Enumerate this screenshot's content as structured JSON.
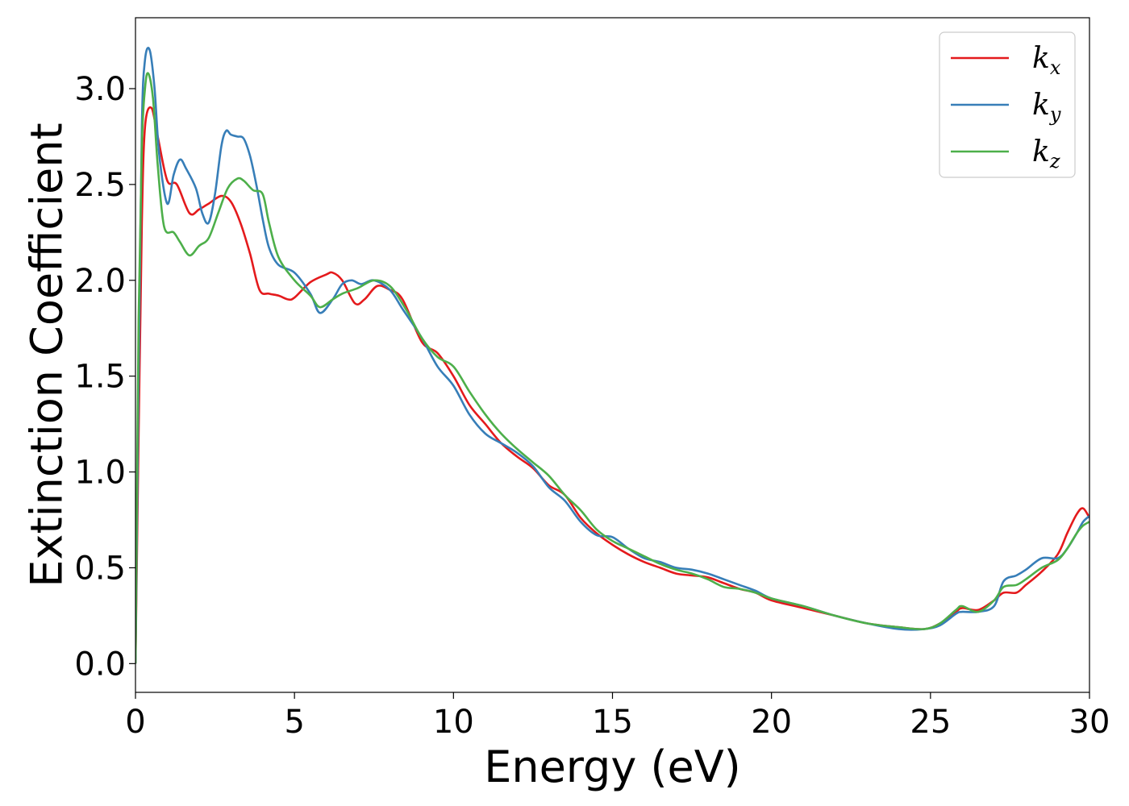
{
  "chart_data": {
    "type": "line",
    "title": "",
    "xlabel": "Energy (eV)",
    "ylabel": "Extinction Coefficient",
    "xlim": [
      0,
      30
    ],
    "ylim": [
      -0.15,
      3.37
    ],
    "xticks": [
      0,
      5,
      10,
      15,
      20,
      25,
      30
    ],
    "xtick_labels": [
      "0",
      "5",
      "10",
      "15",
      "20",
      "25",
      "30"
    ],
    "yticks": [
      0.0,
      0.5,
      1.0,
      1.5,
      2.0,
      2.5,
      3.0
    ],
    "ytick_labels": [
      "0.0",
      "0.5",
      "1.0",
      "1.5",
      "2.0",
      "2.5",
      "3.0"
    ],
    "grid": false,
    "legend_position": "top-right",
    "series": [
      {
        "name": "kx",
        "label_base": "k",
        "label_sub": "x",
        "color": "#e41a1c",
        "x": [
          0,
          0.1,
          0.2,
          0.3,
          0.5,
          0.7,
          1.0,
          1.3,
          1.7,
          2.0,
          2.3,
          2.7,
          3.0,
          3.3,
          3.6,
          3.9,
          4.2,
          4.5,
          4.8,
          5.0,
          5.5,
          6.0,
          6.2,
          6.5,
          6.9,
          7.2,
          7.6,
          8.0,
          8.4,
          9.0,
          9.5,
          10.0,
          10.5,
          11.0,
          11.5,
          12.0,
          12.5,
          13.0,
          13.5,
          14.0,
          14.5,
          15.0,
          15.5,
          16.0,
          16.5,
          17.0,
          17.5,
          18.0,
          18.5,
          19.0,
          19.5,
          20.0,
          21.0,
          22.0,
          23.0,
          24.0,
          24.8,
          25.3,
          25.8,
          26.0,
          26.5,
          27.0,
          27.3,
          27.7,
          28.0,
          28.5,
          29.0,
          29.3,
          29.6,
          29.8,
          30.0
        ],
        "y": [
          0.0,
          1.2,
          2.3,
          2.8,
          2.9,
          2.75,
          2.52,
          2.5,
          2.35,
          2.37,
          2.4,
          2.44,
          2.41,
          2.3,
          2.14,
          1.95,
          1.93,
          1.92,
          1.9,
          1.91,
          1.99,
          2.03,
          2.04,
          2.0,
          1.88,
          1.9,
          1.97,
          1.95,
          1.9,
          1.68,
          1.62,
          1.5,
          1.35,
          1.25,
          1.15,
          1.08,
          1.02,
          0.93,
          0.88,
          0.76,
          0.68,
          0.62,
          0.57,
          0.53,
          0.5,
          0.47,
          0.46,
          0.45,
          0.42,
          0.39,
          0.37,
          0.33,
          0.29,
          0.25,
          0.21,
          0.19,
          0.18,
          0.21,
          0.27,
          0.29,
          0.28,
          0.33,
          0.37,
          0.37,
          0.41,
          0.48,
          0.57,
          0.68,
          0.78,
          0.81,
          0.76
        ]
      },
      {
        "name": "ky",
        "label_base": "k",
        "label_sub": "y",
        "color": "#377eb8",
        "x": [
          0,
          0.1,
          0.2,
          0.3,
          0.45,
          0.6,
          0.75,
          1.0,
          1.2,
          1.4,
          1.6,
          1.9,
          2.1,
          2.3,
          2.5,
          2.7,
          2.85,
          3.0,
          3.2,
          3.4,
          3.6,
          3.8,
          4.0,
          4.2,
          4.5,
          5.0,
          5.5,
          5.8,
          6.2,
          6.5,
          6.8,
          7.1,
          7.5,
          8.0,
          8.4,
          9.0,
          9.5,
          10.0,
          10.5,
          11.0,
          11.5,
          12.0,
          12.5,
          13.0,
          13.5,
          14.0,
          14.5,
          15.0,
          15.5,
          16.0,
          16.5,
          17.0,
          17.5,
          18.0,
          18.5,
          19.0,
          19.5,
          20.0,
          21.0,
          22.0,
          23.0,
          24.0,
          24.8,
          25.3,
          25.8,
          26.0,
          26.5,
          27.0,
          27.3,
          27.7,
          28.0,
          28.5,
          29.0,
          29.3,
          29.6,
          29.8,
          30.0
        ],
        "y": [
          0.0,
          1.5,
          2.8,
          3.15,
          3.2,
          3.0,
          2.65,
          2.4,
          2.55,
          2.63,
          2.58,
          2.48,
          2.35,
          2.3,
          2.45,
          2.7,
          2.78,
          2.76,
          2.75,
          2.74,
          2.65,
          2.5,
          2.32,
          2.17,
          2.08,
          2.04,
          1.93,
          1.83,
          1.9,
          1.98,
          2.0,
          1.98,
          2.0,
          1.95,
          1.85,
          1.7,
          1.55,
          1.45,
          1.3,
          1.2,
          1.15,
          1.1,
          1.03,
          0.92,
          0.85,
          0.74,
          0.67,
          0.66,
          0.6,
          0.55,
          0.53,
          0.5,
          0.49,
          0.47,
          0.44,
          0.41,
          0.38,
          0.34,
          0.3,
          0.25,
          0.21,
          0.18,
          0.18,
          0.2,
          0.26,
          0.27,
          0.27,
          0.3,
          0.43,
          0.46,
          0.49,
          0.55,
          0.55,
          0.6,
          0.68,
          0.74,
          0.77
        ]
      },
      {
        "name": "kz",
        "label_base": "k",
        "label_sub": "z",
        "color": "#4daf4a",
        "x": [
          0,
          0.1,
          0.2,
          0.3,
          0.4,
          0.55,
          0.7,
          0.9,
          1.2,
          1.4,
          1.7,
          2.0,
          2.3,
          2.6,
          2.9,
          3.2,
          3.4,
          3.7,
          4.0,
          4.2,
          4.5,
          5.0,
          5.5,
          5.8,
          6.2,
          6.5,
          7.0,
          7.5,
          8.0,
          8.5,
          9.0,
          9.5,
          10.0,
          10.5,
          11.0,
          11.5,
          12.0,
          12.5,
          13.0,
          13.5,
          14.0,
          14.5,
          15.0,
          15.5,
          16.0,
          16.5,
          17.0,
          17.5,
          18.0,
          18.5,
          19.0,
          19.5,
          20.0,
          21.0,
          22.0,
          23.0,
          24.0,
          24.8,
          25.3,
          25.8,
          26.0,
          26.5,
          27.0,
          27.3,
          27.7,
          28.0,
          28.5,
          29.0,
          29.3,
          29.6,
          29.8,
          30.0
        ],
        "y": [
          0.0,
          1.8,
          2.7,
          3.0,
          3.08,
          2.95,
          2.6,
          2.28,
          2.25,
          2.2,
          2.13,
          2.18,
          2.22,
          2.35,
          2.48,
          2.53,
          2.52,
          2.47,
          2.45,
          2.3,
          2.12,
          2.0,
          1.92,
          1.86,
          1.9,
          1.93,
          1.96,
          2.0,
          1.97,
          1.85,
          1.7,
          1.6,
          1.55,
          1.42,
          1.3,
          1.2,
          1.12,
          1.05,
          0.98,
          0.88,
          0.8,
          0.7,
          0.64,
          0.6,
          0.56,
          0.52,
          0.49,
          0.47,
          0.44,
          0.4,
          0.39,
          0.37,
          0.34,
          0.3,
          0.25,
          0.21,
          0.19,
          0.18,
          0.21,
          0.28,
          0.3,
          0.27,
          0.33,
          0.4,
          0.41,
          0.44,
          0.5,
          0.54,
          0.6,
          0.68,
          0.72,
          0.74
        ]
      }
    ]
  }
}
